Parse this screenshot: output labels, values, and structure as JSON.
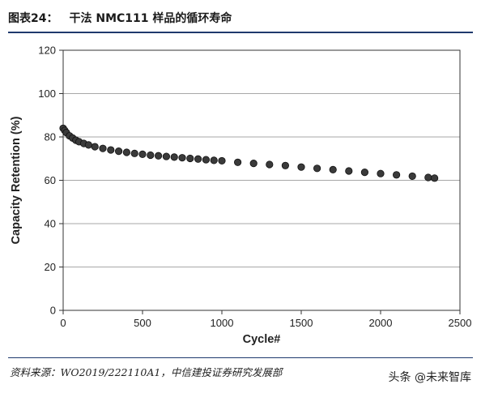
{
  "header": {
    "figure_label": "图表24：",
    "title": "干法 NMC111 样品的循环寿命"
  },
  "source": "资料来源：WO2019/222110A1，中信建投证券研究发展部",
  "watermark": "头条 @未来智库",
  "chart_data": {
    "type": "scatter",
    "title": "",
    "xlabel": "Cycle#",
    "ylabel": "Capacity Retention (%)",
    "xlim": [
      0,
      2500
    ],
    "ylim": [
      0,
      120
    ],
    "xticks": [
      "0",
      "500",
      "1000",
      "1500",
      "2000",
      "2500"
    ],
    "yticks": [
      "0",
      "20",
      "40",
      "60",
      "80",
      "100",
      "120"
    ],
    "grid": "horizontal",
    "marker_color": "#3a3a3a",
    "series": [
      {
        "x": [
          0,
          10,
          20,
          40,
          60,
          80,
          100,
          130,
          160,
          200,
          250,
          300,
          350,
          400,
          450,
          500,
          550,
          600,
          650,
          700,
          750,
          800,
          850,
          900,
          950,
          1000,
          1100,
          1200,
          1300,
          1400,
          1500,
          1600,
          1700,
          1800,
          1900,
          2000,
          2100,
          2200,
          2300,
          2340
        ],
        "y": [
          84,
          83,
          82,
          80.5,
          79.5,
          78.5,
          77.8,
          77,
          76.3,
          75.5,
          74.7,
          74,
          73.4,
          72.9,
          72.4,
          72,
          71.6,
          71.3,
          71,
          70.7,
          70.4,
          70.1,
          69.8,
          69.5,
          69.2,
          69,
          68.3,
          67.8,
          67.3,
          66.8,
          66.1,
          65.5,
          64.9,
          64.3,
          63.7,
          63.1,
          62.5,
          61.9,
          61.3,
          61
        ]
      }
    ]
  }
}
